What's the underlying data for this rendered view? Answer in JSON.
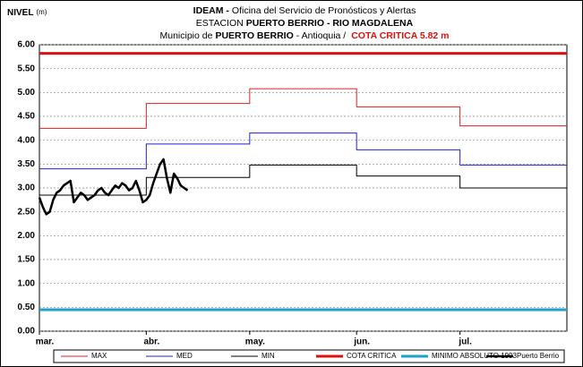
{
  "chart_data": {
    "type": "line",
    "y_label": "NIVEL",
    "y_unit": "(m)",
    "title_lines": [
      [
        "IDEAM -",
        "Oficina del Servicio de Pronósticos y Alertas"
      ],
      [
        "ESTACION",
        "PUERTO BERRIO  - RIO MAGDALENA"
      ],
      [
        "Municipio de",
        "PUERTO BERRIO",
        "- Antioquia  /",
        "COTA CRITICA 5.82 m"
      ]
    ],
    "xlim": [
      0,
      153
    ],
    "xticks": [
      {
        "value": 0,
        "label": "mar."
      },
      {
        "value": 31,
        "label": "abr."
      },
      {
        "value": 61,
        "label": "may."
      },
      {
        "value": 92,
        "label": "jun."
      },
      {
        "value": 122,
        "label": "jul."
      }
    ],
    "ylim": [
      0,
      6
    ],
    "yticks": [
      {
        "value": 0,
        "label": "0.00"
      },
      {
        "value": 0.5,
        "label": "0.50"
      },
      {
        "value": 1,
        "label": "1.00"
      },
      {
        "value": 1.5,
        "label": "1.50"
      },
      {
        "value": 2,
        "label": "2.00"
      },
      {
        "value": 2.5,
        "label": "2.50"
      },
      {
        "value": 3,
        "label": "3.00"
      },
      {
        "value": 3.5,
        "label": "3.50"
      },
      {
        "value": 4,
        "label": "4.00"
      },
      {
        "value": 4.5,
        "label": "4.50"
      },
      {
        "value": 5,
        "label": "5.00"
      },
      {
        "value": 5.5,
        "label": "5.50"
      },
      {
        "value": 6,
        "label": "6.00"
      }
    ],
    "grid": true,
    "series": [
      {
        "name": "MAX",
        "color": "#e02020",
        "line_width": 1,
        "x": [
          0,
          31,
          31,
          61,
          61,
          92,
          92,
          122,
          122,
          153
        ],
        "values": [
          4.25,
          4.25,
          4.77,
          4.77,
          5.08,
          5.08,
          4.7,
          4.7,
          4.3,
          4.3
        ]
      },
      {
        "name": "MED",
        "color": "#2020d0",
        "line_width": 1,
        "x": [
          0,
          31,
          31,
          61,
          61,
          92,
          92,
          122,
          122,
          153
        ],
        "values": [
          3.4,
          3.4,
          3.92,
          3.92,
          4.15,
          4.15,
          3.8,
          3.8,
          3.48,
          3.48
        ]
      },
      {
        "name": "MIN",
        "color": "#000000",
        "line_width": 1,
        "x": [
          0,
          31,
          31,
          61,
          61,
          92,
          92,
          122,
          122,
          153
        ],
        "values": [
          2.85,
          2.85,
          3.22,
          3.22,
          3.48,
          3.48,
          3.25,
          3.25,
          3.0,
          3.0
        ]
      },
      {
        "name": "COTA CRITICA",
        "color": "#e01010",
        "line_width": 3,
        "x": [
          0,
          153
        ],
        "values": [
          5.82,
          5.82
        ]
      },
      {
        "name": "MINIMO ABSOLUTO 1993",
        "color": "#20a0c8",
        "line_width": 3,
        "x": [
          0,
          153
        ],
        "values": [
          0.45,
          0.45
        ]
      },
      {
        "name": "Puerto Berrio",
        "color": "#000000",
        "line_width": 2.5,
        "x": [
          0,
          1,
          2,
          3,
          4,
          5,
          6,
          7,
          8,
          9,
          10,
          11,
          12,
          13,
          14,
          15,
          16,
          17,
          18,
          19,
          20,
          21,
          22,
          23,
          24,
          25,
          26,
          27,
          28,
          29,
          30,
          31,
          32,
          33,
          34,
          35,
          36,
          37,
          38,
          39,
          40,
          41,
          42,
          43
        ],
        "values": [
          2.8,
          2.6,
          2.45,
          2.5,
          2.75,
          2.9,
          2.95,
          3.05,
          3.1,
          3.15,
          2.7,
          2.8,
          2.9,
          2.85,
          2.75,
          2.8,
          2.85,
          2.95,
          3.0,
          2.9,
          2.85,
          2.95,
          3.05,
          3.0,
          3.1,
          3.05,
          2.95,
          3.0,
          3.15,
          2.95,
          2.7,
          2.75,
          2.85,
          3.1,
          3.3,
          3.5,
          3.6,
          3.2,
          2.9,
          3.3,
          3.2,
          3.05,
          3.0,
          2.95
        ]
      }
    ]
  }
}
